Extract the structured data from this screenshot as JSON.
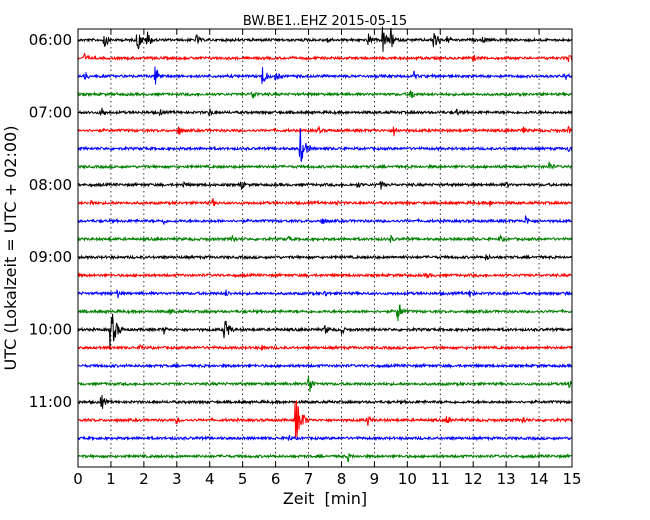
{
  "chart_data": {
    "type": "line",
    "title": "BW.BE1..EHZ 2015-05-15",
    "xlabel": "Zeit  [min]",
    "ylabel": "UTC (Lokalzeit = UTC + 02:00)",
    "xlim": [
      0,
      15
    ],
    "x_ticks": [
      "0",
      "1",
      "2",
      "3",
      "4",
      "5",
      "6",
      "7",
      "8",
      "9",
      "10",
      "11",
      "12",
      "13",
      "14",
      "15"
    ],
    "grid": "vertical dotted lines at each minute",
    "line_interval_minutes": 15,
    "y_tick_labels": [
      "06:00",
      "07:00",
      "08:00",
      "09:00",
      "10:00",
      "11:00"
    ],
    "color_cycle": [
      "#000000",
      "#ff0000",
      "#0000ff",
      "#008000"
    ],
    "rows": [
      {
        "time": "06:00",
        "color": "#000000",
        "events": [
          {
            "t": 0.8,
            "amp": 0.8
          },
          {
            "t": 1.8,
            "amp": 1.1
          },
          {
            "t": 2.1,
            "amp": 0.9
          },
          {
            "t": 3.6,
            "amp": 0.5
          },
          {
            "t": 7.6,
            "amp": 0.4
          },
          {
            "t": 8.8,
            "amp": 0.6
          },
          {
            "t": 9.25,
            "amp": 1.2
          },
          {
            "t": 9.5,
            "amp": 0.9
          },
          {
            "t": 10.8,
            "amp": 1.2
          },
          {
            "t": 11.2,
            "amp": 0.4
          },
          {
            "t": 12.3,
            "amp": 0.3
          }
        ]
      },
      {
        "time": "06:15",
        "color": "#ff0000",
        "events": [
          {
            "t": 0.2,
            "amp": 0.4
          },
          {
            "t": 12.0,
            "amp": 0.3
          },
          {
            "t": 14.9,
            "amp": 0.4
          }
        ]
      },
      {
        "time": "06:30",
        "color": "#0000ff",
        "events": [
          {
            "t": 0.2,
            "amp": 0.5
          },
          {
            "t": 2.35,
            "amp": 1.0
          },
          {
            "t": 5.6,
            "amp": 1.0
          },
          {
            "t": 6.0,
            "amp": 0.5
          },
          {
            "t": 10.2,
            "amp": 0.4
          },
          {
            "t": 14.8,
            "amp": 0.4
          }
        ]
      },
      {
        "time": "06:45",
        "color": "#008000",
        "events": [
          {
            "t": 5.3,
            "amp": 0.6
          },
          {
            "t": 10.1,
            "amp": 0.6
          }
        ]
      },
      {
        "time": "07:00",
        "color": "#000000",
        "events": [
          {
            "t": 0.7,
            "amp": 0.6
          },
          {
            "t": 2.5,
            "amp": 0.3
          },
          {
            "t": 4.0,
            "amp": 0.4
          },
          {
            "t": 11.5,
            "amp": 0.3
          }
        ]
      },
      {
        "time": "07:15",
        "color": "#ff0000",
        "events": [
          {
            "t": 3.05,
            "amp": 0.5
          },
          {
            "t": 7.3,
            "amp": 0.3
          },
          {
            "t": 9.6,
            "amp": 0.5
          },
          {
            "t": 13.5,
            "amp": 0.4
          },
          {
            "t": 14.9,
            "amp": 0.3
          }
        ]
      },
      {
        "time": "07:30",
        "color": "#0000ff",
        "events": [
          {
            "t": 6.75,
            "amp": 1.7
          },
          {
            "t": 14.9,
            "amp": 0.3
          }
        ]
      },
      {
        "time": "07:45",
        "color": "#008000",
        "events": [
          {
            "t": 14.3,
            "amp": 0.5
          }
        ]
      },
      {
        "time": "08:00",
        "color": "#000000",
        "events": [
          {
            "t": 3.2,
            "amp": 0.3
          },
          {
            "t": 4.95,
            "amp": 0.5
          },
          {
            "t": 8.5,
            "amp": 0.3
          },
          {
            "t": 9.2,
            "amp": 0.4
          },
          {
            "t": 13.0,
            "amp": 0.3
          }
        ]
      },
      {
        "time": "08:15",
        "color": "#ff0000",
        "events": [
          {
            "t": 0.4,
            "amp": 0.3
          },
          {
            "t": 4.1,
            "amp": 0.3
          },
          {
            "t": 7.8,
            "amp": 0.3
          },
          {
            "t": 12.5,
            "amp": 0.3
          }
        ]
      },
      {
        "time": "08:30",
        "color": "#0000ff",
        "events": [
          {
            "t": 2.6,
            "amp": 0.3
          },
          {
            "t": 7.4,
            "amp": 0.4
          },
          {
            "t": 13.6,
            "amp": 0.5
          }
        ]
      },
      {
        "time": "08:45",
        "color": "#008000",
        "events": [
          {
            "t": 4.7,
            "amp": 0.5
          },
          {
            "t": 6.4,
            "amp": 0.3
          },
          {
            "t": 9.5,
            "amp": 0.3
          },
          {
            "t": 12.8,
            "amp": 0.4
          }
        ]
      },
      {
        "time": "09:00",
        "color": "#000000",
        "events": [
          {
            "t": 12.4,
            "amp": 0.3
          }
        ]
      },
      {
        "time": "09:15",
        "color": "#ff0000",
        "events": [
          {
            "t": 10.6,
            "amp": 0.3
          }
        ]
      },
      {
        "time": "09:30",
        "color": "#0000ff",
        "events": [
          {
            "t": 1.2,
            "amp": 0.4
          },
          {
            "t": 4.5,
            "amp": 0.3
          },
          {
            "t": 7.5,
            "amp": 0.3
          },
          {
            "t": 11.9,
            "amp": 0.4
          },
          {
            "t": 14.8,
            "amp": 0.3
          }
        ]
      },
      {
        "time": "09:45",
        "color": "#008000",
        "events": [
          {
            "t": 2.8,
            "amp": 0.3
          },
          {
            "t": 9.7,
            "amp": 1.1
          }
        ]
      },
      {
        "time": "10:00",
        "color": "#000000",
        "events": [
          {
            "t": 0.98,
            "amp": 2.1
          },
          {
            "t": 2.6,
            "amp": 0.4
          },
          {
            "t": 4.45,
            "amp": 1.3
          },
          {
            "t": 7.5,
            "amp": 0.5
          },
          {
            "t": 8.0,
            "amp": 0.4
          }
        ]
      },
      {
        "time": "10:15",
        "color": "#ff0000",
        "events": [
          {
            "t": 1.9,
            "amp": 0.3
          },
          {
            "t": 5.6,
            "amp": 0.3
          }
        ]
      },
      {
        "time": "10:30",
        "color": "#0000ff",
        "events": []
      },
      {
        "time": "10:45",
        "color": "#008000",
        "events": [
          {
            "t": 7.0,
            "amp": 1.1
          },
          {
            "t": 14.9,
            "amp": 0.5
          }
        ]
      },
      {
        "time": "11:00",
        "color": "#000000",
        "events": [
          {
            "t": 0.7,
            "amp": 0.8
          }
        ]
      },
      {
        "time": "11:15",
        "color": "#ff0000",
        "events": [
          {
            "t": 3.0,
            "amp": 0.3
          },
          {
            "t": 6.6,
            "amp": 2.3
          },
          {
            "t": 8.8,
            "amp": 0.5
          },
          {
            "t": 11.2,
            "amp": 0.5
          },
          {
            "t": 13.5,
            "amp": 0.4
          }
        ]
      },
      {
        "time": "11:30",
        "color": "#0000ff",
        "events": [
          {
            "t": 6.4,
            "amp": 0.3
          }
        ]
      },
      {
        "time": "11:45",
        "color": "#008000",
        "events": [
          {
            "t": 8.2,
            "amp": 0.4
          }
        ]
      }
    ]
  }
}
